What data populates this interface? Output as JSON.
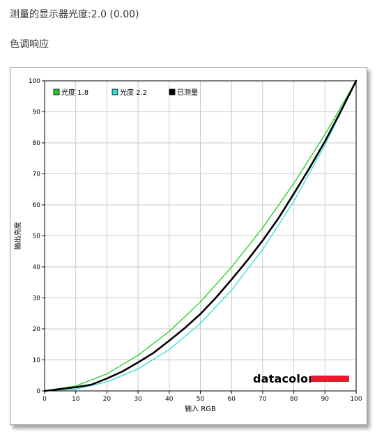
{
  "header": {
    "gamma_label": "测量的显示器光度:",
    "gamma_value": "2.0 (0.00)"
  },
  "section_title": "色调响应",
  "chart_data": {
    "type": "line",
    "xlabel": "输入 RGB",
    "ylabel": "输出亮度",
    "xlim": [
      0,
      100
    ],
    "ylim": [
      0,
      100
    ],
    "x_ticks": [
      0,
      10,
      20,
      30,
      40,
      50,
      60,
      70,
      80,
      90,
      100
    ],
    "y_ticks": [
      0,
      10,
      20,
      30,
      40,
      50,
      60,
      70,
      80,
      90,
      100
    ],
    "grid": true,
    "legend_position": "top-left",
    "series": [
      {
        "name": "光度 1.8",
        "color": "#22cc22",
        "x": [
          0,
          10,
          20,
          30,
          40,
          50,
          60,
          70,
          80,
          90,
          100
        ],
        "values": [
          0,
          1.6,
          5.5,
          11.5,
          19.2,
          28.7,
          39.9,
          52.6,
          66.9,
          82.7,
          100
        ]
      },
      {
        "name": "光度 2.2",
        "color": "#33dddd",
        "x": [
          0,
          10,
          20,
          30,
          40,
          50,
          60,
          70,
          80,
          90,
          100
        ],
        "values": [
          0,
          0.6,
          2.9,
          7.1,
          13.3,
          21.8,
          32.5,
          45.6,
          61.2,
          79.3,
          100
        ]
      },
      {
        "name": "已测量",
        "color": "#000000",
        "x": [
          0,
          5,
          10,
          15,
          20,
          25,
          30,
          35,
          40,
          45,
          50,
          55,
          60,
          65,
          70,
          75,
          80,
          85,
          90,
          95,
          100
        ],
        "values": [
          0,
          0.6,
          1.2,
          2.0,
          4.0,
          6.3,
          9.2,
          12.3,
          16.2,
          20.3,
          24.8,
          30.1,
          35.9,
          42.0,
          48.5,
          55.6,
          63.6,
          71.8,
          80.5,
          90.0,
          100
        ]
      }
    ],
    "watermark": "datacolor",
    "watermark_color": "#e31d2b"
  }
}
